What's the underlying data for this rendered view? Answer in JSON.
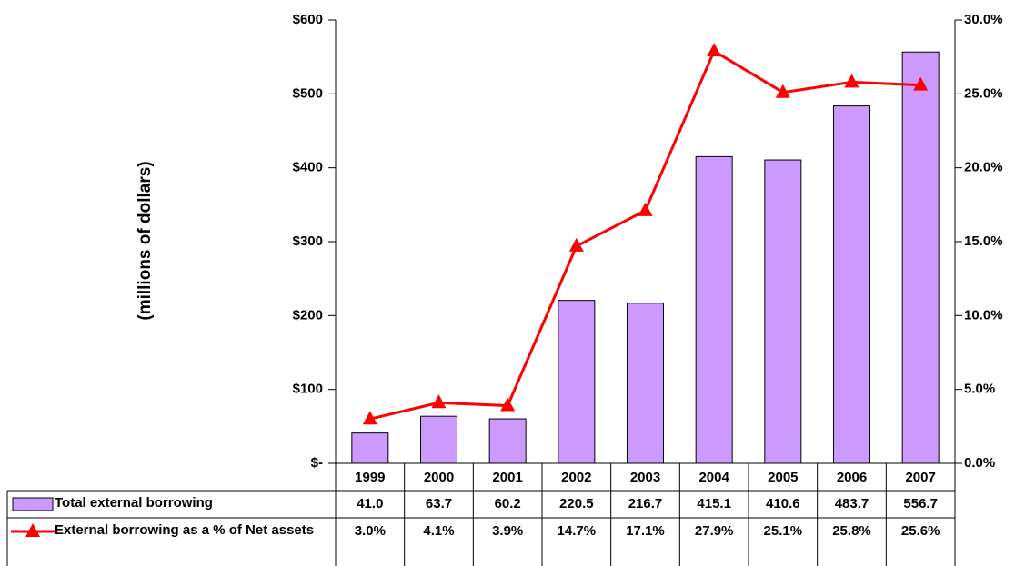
{
  "chart_data": {
    "type": "bar-line",
    "y_label": "(millions of dollars)",
    "categories": [
      "1999",
      "2000",
      "2001",
      "2002",
      "2003",
      "2004",
      "2005",
      "2006",
      "2007"
    ],
    "series": [
      {
        "name": "Total external borrowing",
        "type": "bar",
        "color": "#cc99ff",
        "values": [
          41.0,
          63.7,
          60.2,
          220.5,
          216.7,
          415.1,
          410.6,
          483.7,
          556.7
        ],
        "value_labels": [
          "41.0",
          "63.7",
          "60.2",
          "220.5",
          "216.7",
          "415.1",
          "410.6",
          "483.7",
          "556.7"
        ]
      },
      {
        "name": "External borrowing as a % of Net assets",
        "type": "line",
        "axis": "y2",
        "color": "#ff0000",
        "values": [
          3.0,
          4.1,
          3.9,
          14.7,
          17.1,
          27.9,
          25.1,
          25.8,
          25.6
        ],
        "value_labels": [
          "3.0%",
          "4.1%",
          "3.9%",
          "14.7%",
          "17.1%",
          "27.9%",
          "25.1%",
          "25.8%",
          "25.6%"
        ]
      }
    ],
    "ylim": [
      0,
      600
    ],
    "yticks": [
      {
        "value": 0,
        "label": "$-"
      },
      {
        "value": 100,
        "label": "$100"
      },
      {
        "value": 200,
        "label": "$200"
      },
      {
        "value": 300,
        "label": "$300"
      },
      {
        "value": 400,
        "label": "$400"
      },
      {
        "value": 500,
        "label": "$500"
      },
      {
        "value": 600,
        "label": "$600"
      }
    ],
    "y2lim": [
      0,
      30
    ],
    "y2ticks": [
      {
        "value": 0,
        "label": "0.0%"
      },
      {
        "value": 5,
        "label": "5.0%"
      },
      {
        "value": 10,
        "label": "10.0%"
      },
      {
        "value": 15,
        "label": "15.0%"
      },
      {
        "value": 20,
        "label": "20.0%"
      },
      {
        "value": 25,
        "label": "25.0%"
      },
      {
        "value": 30,
        "label": "30.0%"
      }
    ]
  }
}
